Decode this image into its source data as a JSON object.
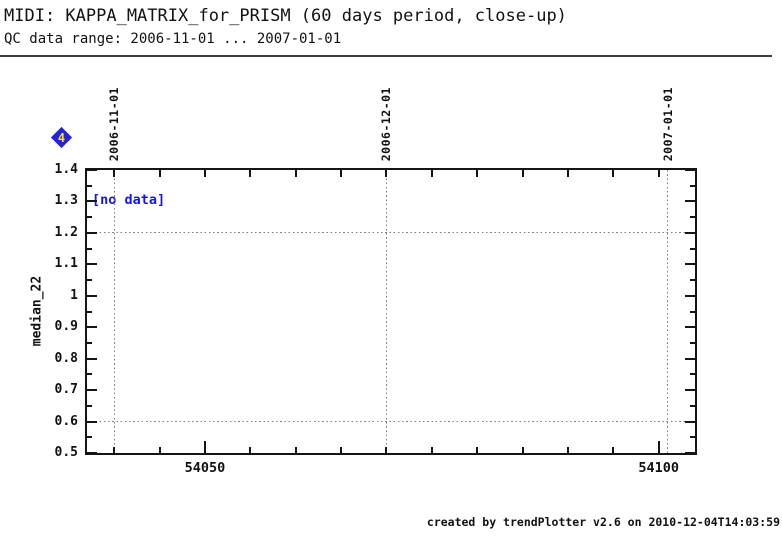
{
  "header": {
    "title": "MIDI: KAPPA_MATRIX_for_PRISM (60 days period, close-up)",
    "subtitle": "QC data range: 2006-11-01 ... 2007-01-01"
  },
  "legend": {
    "marker_value": "4",
    "marker_color": "#2323dd",
    "marker_text_color": "#ffe600"
  },
  "footer": {
    "credit": "created by trendPlotter v2.6 on 2010-12-04T14:03:59"
  },
  "chart_data": {
    "type": "scatter",
    "title": "MIDI: KAPPA_MATRIX_for_PRISM (60 days period, close-up)",
    "xlabel": "",
    "ylabel": "median_22",
    "annotation": "[no data]",
    "annotation_color": "#1414ee",
    "no_data": true,
    "series": [],
    "xlim": [
      54037,
      54104
    ],
    "ylim": [
      0.5,
      1.4
    ],
    "x_minor_step": 5,
    "x_minor_start": 54040,
    "x_minor_end": 54100,
    "y_major_step": 0.1,
    "y_minor_step": 0.05,
    "xticks": [
      {
        "v": 54050,
        "label": "54050"
      },
      {
        "v": 54100,
        "label": "54100"
      }
    ],
    "yticks": [
      {
        "v": 1.4,
        "label": "1.4"
      },
      {
        "v": 1.3,
        "label": "1.3"
      },
      {
        "v": 1.2,
        "label": "1.2"
      },
      {
        "v": 1.1,
        "label": "1.1"
      },
      {
        "v": 1.0,
        "label": "1"
      },
      {
        "v": 0.9,
        "label": "0.9"
      },
      {
        "v": 0.8,
        "label": "0.8"
      },
      {
        "v": 0.7,
        "label": "0.7"
      },
      {
        "v": 0.6,
        "label": "0.6"
      },
      {
        "v": 0.5,
        "label": "0.5"
      }
    ],
    "date_marks": [
      {
        "label": "2006-11-01",
        "mjd": 54040
      },
      {
        "label": "2006-12-01",
        "mjd": 54070
      },
      {
        "label": "2007-01-01",
        "mjd": 54101
      }
    ],
    "limit_lines_y": [
      1.2,
      0.6
    ],
    "grid": "dotted-marks-only",
    "legend_position": "top-left-marker"
  }
}
